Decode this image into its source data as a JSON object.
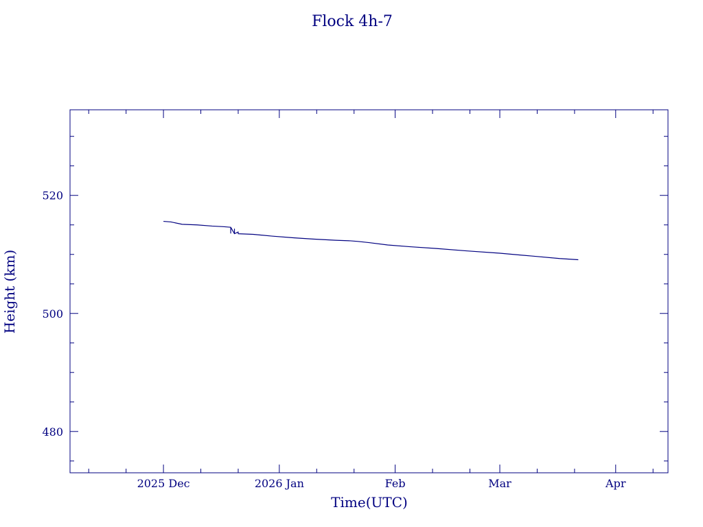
{
  "chart_data": {
    "type": "line",
    "title": "Flock 4h-7",
    "xlabel": "Time(UTC)",
    "ylabel": "Height (km)",
    "xlim": [
      "2025-11-06",
      "2026-04-15"
    ],
    "ylim": [
      473,
      534.5
    ],
    "grid": false,
    "x_ticks": [
      {
        "date": "2025-12-01",
        "label": "2025 Dec"
      },
      {
        "date": "2026-01-01",
        "label": "2026 Jan"
      },
      {
        "date": "2026-02-01",
        "label": "Feb"
      },
      {
        "date": "2026-03-01",
        "label": "Mar"
      },
      {
        "date": "2026-04-01",
        "label": "Apr"
      }
    ],
    "y_ticks": [
      480,
      500,
      520
    ],
    "series": [
      {
        "color": "#000080",
        "points": [
          {
            "x": "2025-12-01",
            "y": 515.6
          },
          {
            "x": "2025-12-03",
            "y": 515.5
          },
          {
            "x": "2025-12-06",
            "y": 515.1
          },
          {
            "x": "2025-12-10",
            "y": 515.0
          },
          {
            "x": "2025-12-14",
            "y": 514.8
          },
          {
            "x": "2025-12-17",
            "y": 514.7
          },
          {
            "x": "2025-12-19",
            "y": 514.6
          },
          {
            "x": "2025-12-19",
            "y": 513.6
          },
          {
            "x": "2025-12-19",
            "y": 514.6
          },
          {
            "x": "2025-12-20",
            "y": 513.5
          },
          {
            "x": "2025-12-20",
            "y": 514.3
          },
          {
            "x": "2025-12-20",
            "y": 513.5
          },
          {
            "x": "2025-12-21",
            "y": 513.8
          },
          {
            "x": "2025-12-21",
            "y": 513.5
          },
          {
            "x": "2025-12-25",
            "y": 513.4
          },
          {
            "x": "2025-12-30",
            "y": 513.1
          },
          {
            "x": "2026-01-05",
            "y": 512.8
          },
          {
            "x": "2026-01-10",
            "y": 512.6
          },
          {
            "x": "2026-01-16",
            "y": 512.4
          },
          {
            "x": "2026-01-20",
            "y": 512.3
          },
          {
            "x": "2026-01-22",
            "y": 512.2
          },
          {
            "x": "2026-01-25",
            "y": 512.0
          },
          {
            "x": "2026-01-30",
            "y": 511.6
          },
          {
            "x": "2026-02-05",
            "y": 511.3
          },
          {
            "x": "2026-02-12",
            "y": 511.0
          },
          {
            "x": "2026-02-20",
            "y": 510.6
          },
          {
            "x": "2026-03-01",
            "y": 510.2
          },
          {
            "x": "2026-03-10",
            "y": 509.7
          },
          {
            "x": "2026-03-17",
            "y": 509.3
          },
          {
            "x": "2026-03-22",
            "y": 509.1
          }
        ]
      }
    ]
  }
}
